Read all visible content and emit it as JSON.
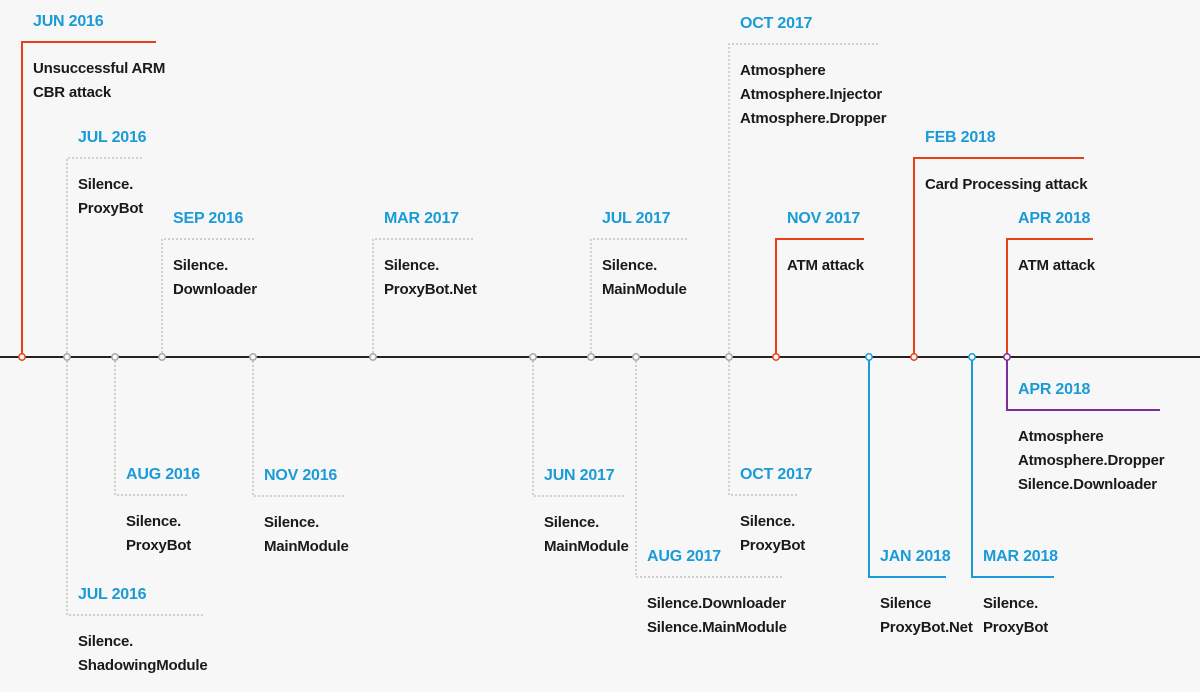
{
  "colors": {
    "background": "#f7f7f7",
    "axis": "#222222",
    "date_text": "#1a9bd7",
    "body_text": "#1a1a1a",
    "atm_attack": "#e8401c",
    "silence_neutral": "#a8a8a8",
    "silence_2018": "#1a9bd7",
    "atmosphere_2018": "#7b2d9e"
  },
  "events": [
    {
      "id": "jun-2016-arm-cbr",
      "date": "JUN 2016",
      "lines": [
        "Unsuccessful ARM",
        "CBR attack"
      ],
      "category": "attack"
    },
    {
      "id": "jul-2016-proxybot",
      "date": "JUL 2016",
      "lines": [
        "Silence.",
        "ProxyBot"
      ],
      "category": "neutral"
    },
    {
      "id": "sep-2016-downloader",
      "date": "SEP 2016",
      "lines": [
        "Silence.",
        "Downloader"
      ],
      "category": "neutral"
    },
    {
      "id": "mar-2017-proxybot-net",
      "date": "MAR 2017",
      "lines": [
        "Silence.",
        "ProxyBot.Net"
      ],
      "category": "neutral"
    },
    {
      "id": "jul-2017-mainmodule",
      "date": "JUL 2017",
      "lines": [
        "Silence.",
        "MainModule"
      ],
      "category": "neutral"
    },
    {
      "id": "oct-2017-atmosphere",
      "date": "OCT 2017",
      "lines": [
        "Atmosphere",
        "Atmosphere.Injector",
        "Atmosphere.Dropper"
      ],
      "category": "neutral"
    },
    {
      "id": "nov-2017-atm",
      "date": "NOV 2017",
      "lines": [
        "ATM attack"
      ],
      "category": "attack"
    },
    {
      "id": "feb-2018-card",
      "date": "FEB 2018",
      "lines": [
        "Card Processing attack"
      ],
      "category": "attack"
    },
    {
      "id": "apr-2018-atm",
      "date": "APR 2018",
      "lines": [
        "ATM attack"
      ],
      "category": "attack"
    },
    {
      "id": "aug-2016-proxybot",
      "date": "AUG 2016",
      "lines": [
        "Silence.",
        "ProxyBot"
      ],
      "category": "neutral"
    },
    {
      "id": "jul-2016-shadowing",
      "date": "JUL 2016",
      "lines": [
        "Silence.",
        "ShadowingModule"
      ],
      "category": "neutral"
    },
    {
      "id": "nov-2016-mainmodule",
      "date": "NOV 2016",
      "lines": [
        "Silence.",
        "MainModule"
      ],
      "category": "neutral"
    },
    {
      "id": "jun-2017-mainmodule",
      "date": "JUN 2017",
      "lines": [
        "Silence.",
        "MainModule"
      ],
      "category": "neutral"
    },
    {
      "id": "aug-2017-downloader",
      "date": "AUG 2017",
      "lines": [
        "Silence.Downloader",
        "Silence.MainModule"
      ],
      "category": "neutral"
    },
    {
      "id": "oct-2017-proxybot",
      "date": "OCT 2017",
      "lines": [
        "Silence.",
        "ProxyBot"
      ],
      "category": "neutral"
    },
    {
      "id": "jan-2018-proxybot-net",
      "date": "JAN 2018",
      "lines": [
        "Silence",
        "ProxyBot.Net"
      ],
      "category": "silence2018"
    },
    {
      "id": "mar-2018-proxybot",
      "date": "MAR 2018",
      "lines": [
        "Silence.",
        "ProxyBot"
      ],
      "category": "silence2018"
    },
    {
      "id": "apr-2018-atmosphere",
      "date": "APR 2018",
      "lines": [
        "Atmosphere",
        "Atmosphere.Dropper",
        "Silence.Downloader"
      ],
      "category": "atmosphere"
    }
  ]
}
